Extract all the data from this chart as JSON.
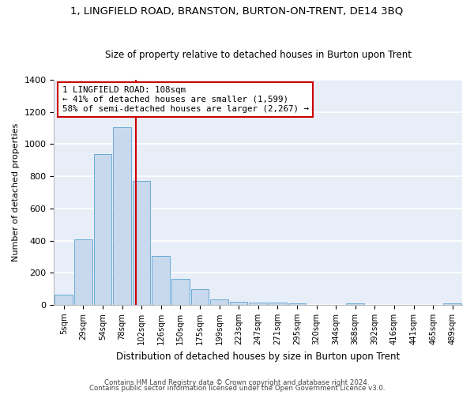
{
  "title": "1, LINGFIELD ROAD, BRANSTON, BURTON-ON-TRENT, DE14 3BQ",
  "subtitle": "Size of property relative to detached houses in Burton upon Trent",
  "xlabel": "Distribution of detached houses by size in Burton upon Trent",
  "ylabel": "Number of detached properties",
  "footer1": "Contains HM Land Registry data © Crown copyright and database right 2024.",
  "footer2": "Contains public sector information licensed under the Open Government Licence v3.0.",
  "bar_labels": [
    "5sqm",
    "29sqm",
    "54sqm",
    "78sqm",
    "102sqm",
    "126sqm",
    "150sqm",
    "175sqm",
    "199sqm",
    "223sqm",
    "247sqm",
    "271sqm",
    "295sqm",
    "320sqm",
    "344sqm",
    "368sqm",
    "392sqm",
    "416sqm",
    "441sqm",
    "465sqm",
    "489sqm"
  ],
  "bar_values": [
    65,
    410,
    940,
    1105,
    770,
    305,
    160,
    100,
    35,
    20,
    15,
    15,
    10,
    0,
    0,
    12,
    0,
    0,
    0,
    0,
    8
  ],
  "bar_color": "#c8d9ee",
  "bar_edgecolor": "#6aaad4",
  "bg_color": "#e8eef8",
  "grid_color": "#ffffff",
  "vline_color": "#cc0000",
  "vline_pos": 3.72,
  "annotation_text": "1 LINGFIELD ROAD: 108sqm\n← 41% of detached houses are smaller (1,599)\n58% of semi-detached houses are larger (2,267) →",
  "annotation_box_edgecolor": "#cc0000",
  "ylim": [
    0,
    1400
  ],
  "yticks": [
    0,
    200,
    400,
    600,
    800,
    1000,
    1200,
    1400
  ],
  "title_fontsize": 9.5,
  "subtitle_fontsize": 8.5
}
